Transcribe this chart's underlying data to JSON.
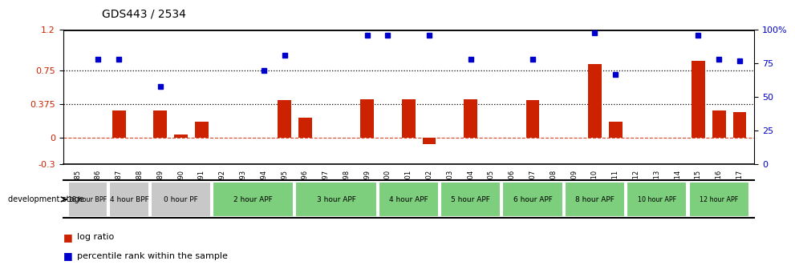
{
  "title": "GDS443 / 2534",
  "samples": [
    "GSM4585",
    "GSM4586",
    "GSM4587",
    "GSM4588",
    "GSM4589",
    "GSM4590",
    "GSM4591",
    "GSM4592",
    "GSM4593",
    "GSM4594",
    "GSM4595",
    "GSM4596",
    "GSM4597",
    "GSM4598",
    "GSM4599",
    "GSM4600",
    "GSM4601",
    "GSM4602",
    "GSM4603",
    "GSM4604",
    "GSM4605",
    "GSM4606",
    "GSM4607",
    "GSM4608",
    "GSM4609",
    "GSM4610",
    "GSM4611",
    "GSM4612",
    "GSM4613",
    "GSM4614",
    "GSM4615",
    "GSM4616",
    "GSM4617"
  ],
  "log_ratio": [
    0.0,
    0.0,
    0.3,
    0.0,
    0.3,
    0.03,
    0.18,
    0.0,
    0.0,
    0.0,
    0.42,
    0.22,
    0.0,
    0.0,
    0.43,
    0.0,
    0.43,
    -0.07,
    0.0,
    0.43,
    0.0,
    0.0,
    0.42,
    0.0,
    0.0,
    0.82,
    0.18,
    0.0,
    0.0,
    0.0,
    0.85,
    0.3,
    0.28
  ],
  "percentile_left_axis": [
    null,
    0.87,
    0.87,
    null,
    0.57,
    null,
    null,
    null,
    null,
    0.75,
    0.92,
    null,
    null,
    null,
    1.14,
    1.14,
    null,
    1.14,
    null,
    0.87,
    null,
    null,
    0.87,
    null,
    null,
    1.17,
    0.7,
    null,
    null,
    null,
    1.14,
    0.87,
    0.85
  ],
  "stage_groups": [
    {
      "label": "18 hour BPF",
      "start": 0,
      "end": 2,
      "color": "#c8c8c8"
    },
    {
      "label": "4 hour BPF",
      "start": 2,
      "end": 4,
      "color": "#c8c8c8"
    },
    {
      "label": "0 hour PF",
      "start": 4,
      "end": 7,
      "color": "#c8c8c8"
    },
    {
      "label": "2 hour APF",
      "start": 7,
      "end": 11,
      "color": "#7dce7d"
    },
    {
      "label": "3 hour APF",
      "start": 11,
      "end": 15,
      "color": "#7dce7d"
    },
    {
      "label": "4 hour APF",
      "start": 15,
      "end": 18,
      "color": "#7dce7d"
    },
    {
      "label": "5 hour APF",
      "start": 18,
      "end": 21,
      "color": "#7dce7d"
    },
    {
      "label": "6 hour APF",
      "start": 21,
      "end": 24,
      "color": "#7dce7d"
    },
    {
      "label": "8 hour APF",
      "start": 24,
      "end": 27,
      "color": "#7dce7d"
    },
    {
      "label": "10 hour APF",
      "start": 27,
      "end": 30,
      "color": "#7dce7d"
    },
    {
      "label": "12 hour APF",
      "start": 30,
      "end": 33,
      "color": "#7dce7d"
    }
  ],
  "ylim_left": [
    -0.3,
    1.2
  ],
  "yticks_left": [
    -0.3,
    0.0,
    0.375,
    0.75,
    1.2
  ],
  "yticklabels_left": [
    "-0.3",
    "0",
    "0.375",
    "0.75",
    "1.2"
  ],
  "yticks_right": [
    0,
    25,
    50,
    75,
    100
  ],
  "yticklabels_right": [
    "0",
    "25",
    "50",
    "75",
    "100%"
  ],
  "bar_color": "#cc2200",
  "dot_color": "#0000cc",
  "dotted_lines": [
    0.375,
    0.75
  ],
  "legend_label_bar": "log ratio",
  "legend_label_dot": "percentile rank within the sample",
  "dev_stage_label": "development stage"
}
